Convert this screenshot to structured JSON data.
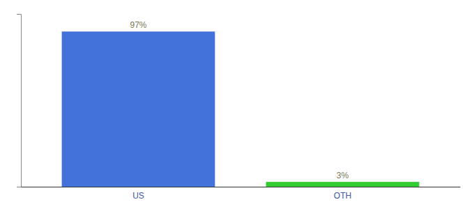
{
  "chart_data": {
    "type": "bar",
    "categories": [
      "US",
      "OTH"
    ],
    "values": [
      97,
      3
    ],
    "value_labels": [
      "97%",
      "3%"
    ],
    "colors": [
      "#4472db",
      "#33cc33"
    ],
    "ylim": [
      0,
      108
    ],
    "yticks": [],
    "data_labels": true,
    "tick_labels": "x"
  }
}
